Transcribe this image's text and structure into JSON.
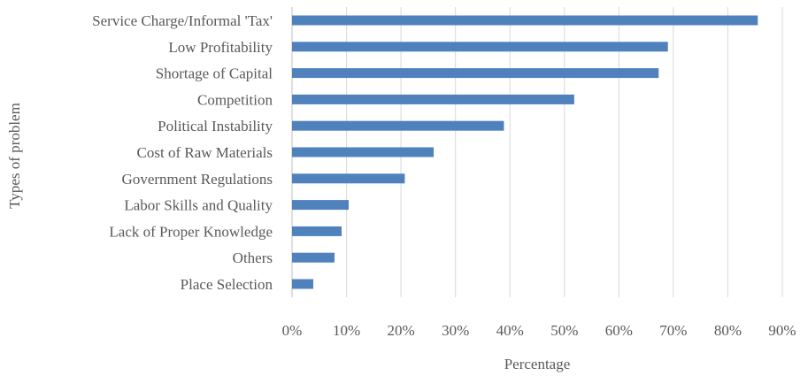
{
  "chart_data": {
    "type": "bar",
    "orientation": "horizontal",
    "categories": [
      "Service Charge/Informal 'Tax'",
      "Low Profitability",
      "Shortage of Capital",
      "Competition",
      "Political Instability",
      "Cost of Raw Materials",
      "Government Regulations",
      "Labor Skills and Quality",
      "Lack of Proper Knowledge",
      "Others",
      "Place Selection"
    ],
    "values": [
      85.5,
      69,
      67.3,
      51.8,
      38.9,
      26,
      20.7,
      10.4,
      9.1,
      7.8,
      3.9
    ],
    "xlabel": "Percentage",
    "ylabel": "Types of problem",
    "xlim": [
      0,
      90
    ],
    "xticks": [
      "0%",
      "10%",
      "20%",
      "30%",
      "40%",
      "50%",
      "60%",
      "70%",
      "80%",
      "90%"
    ],
    "grid": true,
    "bar_color": "#4f81bd"
  }
}
